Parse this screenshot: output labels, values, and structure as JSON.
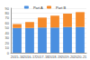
{
  "chart_data": {
    "type": "bar",
    "stacked": true,
    "legend": "top",
    "grid": true,
    "categories": [
      "2015-16",
      "2016-17",
      "2017-18",
      "2018-19",
      "2019-20",
      "2020-21"
    ],
    "series": [
      {
        "name": "Part A",
        "color": "#4a8fe0",
        "values": [
          50,
          50,
          51,
          51,
          52,
          52
        ]
      },
      {
        "name": "Part B",
        "color": "#f58a2a",
        "values": [
          8,
          12,
          20,
          24,
          27,
          30
        ]
      }
    ],
    "ylim": [
      0,
      90
    ],
    "yticks": [
      0,
      10,
      20,
      30,
      40,
      50,
      60,
      70,
      80,
      90
    ]
  }
}
